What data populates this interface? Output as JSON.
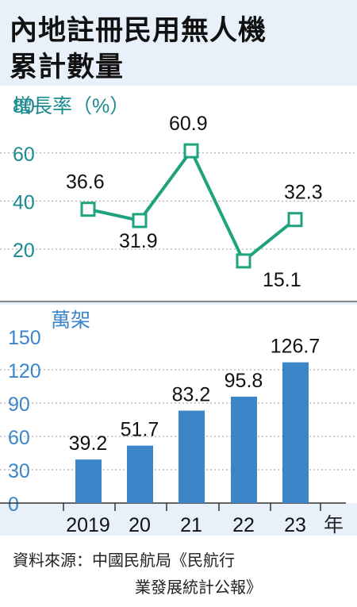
{
  "title_lines": [
    "內地註冊民用無人機",
    "累計數量"
  ],
  "source_lines": [
    "資料來源：中國民航局《民航行",
    "業發展統計公報》"
  ],
  "colors": {
    "line": "#1fa37f",
    "bar": "#3b86c8",
    "axis_teal": "#1a8a90",
    "axis_blue": "#3b86c8",
    "title_bg": "#e8f1f9"
  },
  "chart_data": [
    {
      "type": "line",
      "ylabel": "增長率（%）",
      "yticks": [
        20,
        40,
        60,
        80
      ],
      "ylim": [
        0,
        80
      ],
      "categories": [
        "2019",
        "20",
        "21",
        "22",
        "23"
      ],
      "values": [
        36.6,
        31.9,
        60.9,
        15.1,
        32.3
      ],
      "value_labels": [
        "36.6",
        "31.9",
        "60.9",
        "15.1",
        "32.3"
      ],
      "grid": true
    },
    {
      "type": "bar",
      "ylabel": "萬架",
      "yticks": [
        0,
        30,
        60,
        90,
        120,
        150
      ],
      "ylim": [
        0,
        150
      ],
      "categories": [
        "2019",
        "20",
        "21",
        "22",
        "23"
      ],
      "values": [
        39.2,
        51.7,
        83.2,
        95.8,
        126.7
      ],
      "value_labels": [
        "39.2",
        "51.7",
        "83.2",
        "95.8",
        "126.7"
      ],
      "x_unit": "年",
      "grid": true
    }
  ]
}
